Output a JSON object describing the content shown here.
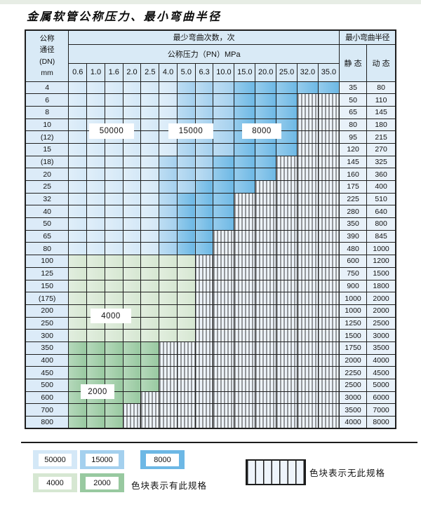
{
  "title": "金属软管公称压力、最小弯曲半径",
  "colors": {
    "blue_50000": "#d4e8f7",
    "blue_15000": "#a4d0ee",
    "blue_8000": "#6db8e5",
    "green_4000": "#d6e7d2",
    "green_2000": "#98c9a0",
    "header_bg": "#d9eaf6",
    "side_bg": "#dcebf8",
    "value_bg": "#e8f1f9",
    "hatch_bg": "#eef4fb",
    "hatch_line": "#3a3a3a",
    "border": "#1f1f1f"
  },
  "table": {
    "header": {
      "dn_lines": [
        "公称",
        "通径",
        "(DN)",
        "mm"
      ],
      "bend_cycles": "最少弯曲次数，次",
      "pressure": "公称压力（PN）MPa",
      "min_radius": "最小弯曲半径",
      "static": "静 态",
      "dynamic": "动 态",
      "pressures": [
        "0.6",
        "1.0",
        "1.6",
        "2.0",
        "2.5",
        "4.0",
        "5.0",
        "6.3",
        "10.0",
        "15.0",
        "20.0",
        "25.0",
        "32.0",
        "35.0"
      ]
    },
    "rows": [
      {
        "dn": "4",
        "st": "35",
        "dy": "80",
        "fill": "blue",
        "light": 5,
        "med": 8,
        "max": 13
      },
      {
        "dn": "6",
        "st": "50",
        "dy": "110",
        "fill": "blue",
        "light": 5,
        "med": 8,
        "max": 11
      },
      {
        "dn": "8",
        "st": "65",
        "dy": "145",
        "fill": "blue",
        "light": 5,
        "med": 8,
        "max": 11
      },
      {
        "dn": "10",
        "st": "80",
        "dy": "180",
        "fill": "blue",
        "light": 5,
        "med": 8,
        "max": 11
      },
      {
        "dn": "(12)",
        "st": "95",
        "dy": "215",
        "fill": "blue",
        "light": 5,
        "med": 8,
        "max": 11
      },
      {
        "dn": "15",
        "st": "120",
        "dy": "270",
        "fill": "blue",
        "light": 5,
        "med": 8,
        "max": 11
      },
      {
        "dn": "(18)",
        "st": "145",
        "dy": "325",
        "fill": "blue",
        "light": 4,
        "med": 7,
        "max": 10
      },
      {
        "dn": "20",
        "st": "160",
        "dy": "360",
        "fill": "blue",
        "light": 4,
        "med": 7,
        "max": 10
      },
      {
        "dn": "25",
        "st": "175",
        "dy": "400",
        "fill": "blue",
        "light": 4,
        "med": 6,
        "max": 9
      },
      {
        "dn": "32",
        "st": "225",
        "dy": "510",
        "fill": "blue",
        "light": 4,
        "med": 5,
        "max": 8
      },
      {
        "dn": "40",
        "st": "280",
        "dy": "640",
        "fill": "blue",
        "light": 4,
        "med": 5,
        "max": 8
      },
      {
        "dn": "50",
        "st": "350",
        "dy": "800",
        "fill": "blue",
        "light": 4,
        "med": 5,
        "max": 8
      },
      {
        "dn": "65",
        "st": "390",
        "dy": "845",
        "fill": "blue",
        "light": 4,
        "med": 5,
        "max": 7
      },
      {
        "dn": "80",
        "st": "480",
        "dy": "1000",
        "fill": "blue",
        "light": 4,
        "med": 5,
        "max": 7
      },
      {
        "dn": "100",
        "st": "600",
        "dy": "1200",
        "fill": "g4000",
        "max": 6
      },
      {
        "dn": "125",
        "st": "750",
        "dy": "1500",
        "fill": "g4000",
        "max": 6
      },
      {
        "dn": "150",
        "st": "900",
        "dy": "1800",
        "fill": "g4000",
        "max": 6
      },
      {
        "dn": "(175)",
        "st": "1000",
        "dy": "2000",
        "fill": "g4000",
        "max": 6
      },
      {
        "dn": "200",
        "st": "1000",
        "dy": "2000",
        "fill": "g4000",
        "max": 6
      },
      {
        "dn": "250",
        "st": "1250",
        "dy": "2500",
        "fill": "g4000",
        "max": 6
      },
      {
        "dn": "300",
        "st": "1500",
        "dy": "3000",
        "fill": "g4000",
        "max": 6
      },
      {
        "dn": "350",
        "st": "1750",
        "dy": "3500",
        "fill": "g2000",
        "max": 4
      },
      {
        "dn": "400",
        "st": "2000",
        "dy": "4000",
        "fill": "g2000",
        "max": 4
      },
      {
        "dn": "450",
        "st": "2250",
        "dy": "4500",
        "fill": "g2000",
        "max": 4
      },
      {
        "dn": "500",
        "st": "2500",
        "dy": "5000",
        "fill": "g2000",
        "max": 4
      },
      {
        "dn": "600",
        "st": "3000",
        "dy": "6000",
        "fill": "g2000",
        "max": 3
      },
      {
        "dn": "700",
        "st": "3500",
        "dy": "7000",
        "fill": "g2000",
        "max": 2
      },
      {
        "dn": "800",
        "st": "4000",
        "dy": "8000",
        "fill": "g2000",
        "max": 2
      }
    ]
  },
  "overlays": {
    "l50000": "50000",
    "l15000": "15000",
    "l8000": "8000",
    "l4000": "4000",
    "l2000": "2000"
  },
  "legend": {
    "available_label": "色块表示有此规格",
    "unavailable_label": "色块表示无此规格",
    "items": [
      {
        "value": "50000",
        "color_key": "blue_50000"
      },
      {
        "value": "15000",
        "color_key": "blue_15000"
      },
      {
        "value": "8000",
        "color_key": "blue_8000"
      },
      {
        "value": "4000",
        "color_key": "green_4000"
      },
      {
        "value": "2000",
        "color_key": "green_2000"
      }
    ]
  }
}
